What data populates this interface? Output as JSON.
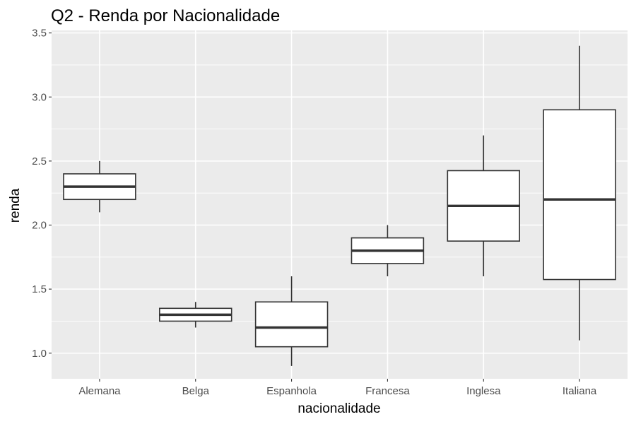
{
  "chart_data": {
    "type": "boxplot",
    "title": "Q2 - Renda por Nacionalidade",
    "xlabel": "nacionalidade",
    "ylabel": "renda",
    "ylim": [
      0.8,
      3.52
    ],
    "yticks": [
      1.0,
      1.5,
      2.0,
      2.5,
      3.0,
      3.5
    ],
    "ytick_labels": [
      "1.0",
      "1.5",
      "2.0",
      "2.5",
      "3.0",
      "3.5"
    ],
    "grid": true,
    "background": "#ebebeb",
    "categories": [
      "Alemana",
      "Belga",
      "Espanhola",
      "Francesa",
      "Inglesa",
      "Italiana"
    ],
    "boxes": [
      {
        "category": "Alemana",
        "min": 2.1,
        "q1": 2.2,
        "median": 2.3,
        "q3": 2.4,
        "max": 2.5
      },
      {
        "category": "Belga",
        "min": 1.2,
        "q1": 1.25,
        "median": 1.3,
        "q3": 1.35,
        "max": 1.4
      },
      {
        "category": "Espanhola",
        "min": 0.9,
        "q1": 1.05,
        "median": 1.2,
        "q3": 1.4,
        "max": 1.6
      },
      {
        "category": "Francesa",
        "min": 1.6,
        "q1": 1.7,
        "median": 1.8,
        "q3": 1.9,
        "max": 2.0
      },
      {
        "category": "Inglesa",
        "min": 1.6,
        "q1": 1.875,
        "median": 2.15,
        "q3": 2.425,
        "max": 2.7
      },
      {
        "category": "Italiana",
        "min": 1.1,
        "q1": 1.575,
        "median": 2.2,
        "q3": 2.9,
        "max": 3.4
      }
    ]
  }
}
